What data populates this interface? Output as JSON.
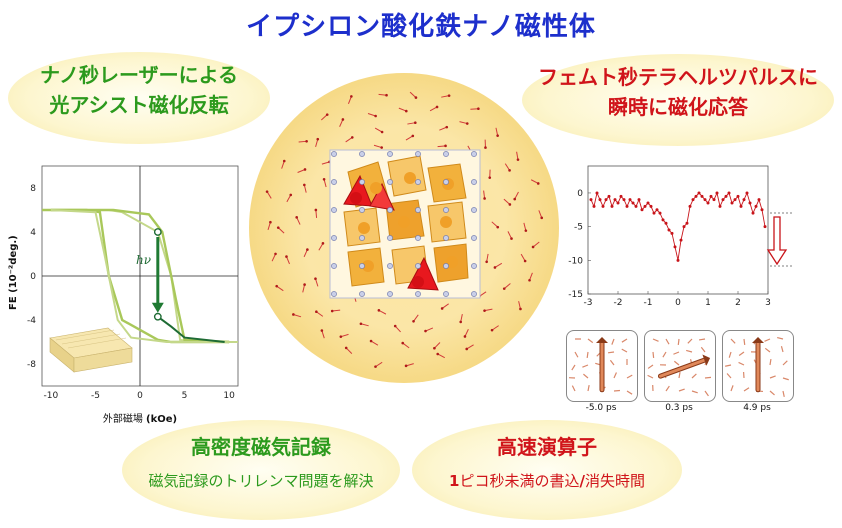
{
  "title": "イプシロン酸化鉄ナノ磁性体",
  "top_left": {
    "line1": "ナノ秒レーザーによる",
    "line2": "光アシスト磁化反転"
  },
  "top_right": {
    "line1": "フェムト秒テラヘルツパルスに",
    "line2": "瞬時に磁化応答"
  },
  "bottom_left": {
    "heading": "高密度磁気記録",
    "text": "磁気記録のトリレンマ問題を解決"
  },
  "bottom_right": {
    "heading": "高速演算子",
    "text_prefix": "1",
    "text_main": "ピコ秒未満の書込",
    "text_sep": "/",
    "text_end": "消失時間"
  },
  "colors": {
    "title": "#1d2fcc",
    "green": "#2c9a1d",
    "red": "#d0141a",
    "hysteresis_light": "#a9c85a",
    "hysteresis_dark": "#1e6b34",
    "arrow_green": "#1f7a33",
    "response_red": "#c8141a"
  },
  "chart_data": [
    {
      "type": "line",
      "ylabel": "FE (10⁻²deg.)",
      "xlabel_prefix": "外部磁場 ",
      "xlabel_suffix": "(kOe)",
      "x_ticks": [
        "-10",
        "-5",
        "0",
        "5",
        "10"
      ],
      "y_ticks": [
        "8",
        "4",
        "0",
        "-4",
        "-8"
      ],
      "xlim": [
        -11,
        11
      ],
      "ylim": [
        -10,
        10
      ],
      "annotation": "hν",
      "series": [
        {
          "values_x": [
            -11,
            -6,
            -4.5,
            -3.5,
            -2,
            2,
            3.5,
            4.5,
            5,
            10
          ],
          "values_y": [
            6,
            6,
            5.8,
            0,
            -4,
            -5.8,
            -6,
            -6,
            -6,
            -6
          ]
        },
        {
          "values_x": [
            -10,
            -6,
            -3,
            1,
            2.5,
            3.5,
            4,
            5,
            10
          ],
          "values_y": [
            6,
            6,
            6,
            5.6,
            4,
            0,
            -2,
            -5.8,
            -6
          ]
        }
      ],
      "marker_points": [
        {
          "x": 2,
          "y": 4
        },
        {
          "x": 2,
          "y": -3.7
        }
      ]
    },
    {
      "type": "line",
      "x_ticks": [
        "-3",
        "-2",
        "-1",
        "0",
        "1",
        "2",
        "3"
      ],
      "y_ticks": [
        "0",
        "-5",
        "-10",
        "-15"
      ],
      "xlim": [
        -3,
        3
      ],
      "ylim": [
        -15,
        4
      ],
      "series": [
        {
          "x": [
            -2.9,
            -2.8,
            -2.7,
            -2.6,
            -2.5,
            -2.4,
            -2.3,
            -2.2,
            -2.1,
            -2.0,
            -1.9,
            -1.8,
            -1.7,
            -1.6,
            -1.5,
            -1.4,
            -1.3,
            -1.2,
            -1.1,
            -1.0,
            -0.9,
            -0.8,
            -0.7,
            -0.6,
            -0.5,
            -0.4,
            -0.3,
            -0.2,
            -0.1,
            0.0,
            0.1,
            0.2,
            0.3,
            0.4,
            0.5,
            0.6,
            0.7,
            0.8,
            0.9,
            1.0,
            1.1,
            1.2,
            1.3,
            1.4,
            1.5,
            1.6,
            1.7,
            1.8,
            1.9,
            2.0,
            2.1,
            2.2,
            2.3,
            2.4,
            2.5,
            2.6,
            2.7,
            2.8,
            2.9
          ],
          "y": [
            -1,
            -2,
            0,
            -1,
            -2,
            -1,
            -0.5,
            -2,
            -1,
            -1.5,
            -0.5,
            -1,
            -2,
            -1,
            -1.5,
            -2,
            -1,
            -2.5,
            -2,
            -1.5,
            -2,
            -3,
            -2.5,
            -3,
            -4,
            -4.5,
            -5.5,
            -6,
            -8,
            -10,
            -7,
            -5,
            -4.5,
            -2,
            -1,
            -0.5,
            0,
            -0.5,
            -1,
            -1.5,
            -0.5,
            -1,
            0,
            -2,
            -1,
            -0.5,
            0,
            -1.5,
            -1,
            -0.5,
            -2,
            -1,
            0,
            -1.5,
            -3,
            -2,
            -1,
            -2.5,
            -5
          ]
        }
      ]
    }
  ],
  "snapshots": [
    {
      "label": "-5.0 ps",
      "angle": -90
    },
    {
      "label": "0.3 ps",
      "angle": -20
    },
    {
      "label": "4.9 ps",
      "angle": -90
    }
  ]
}
